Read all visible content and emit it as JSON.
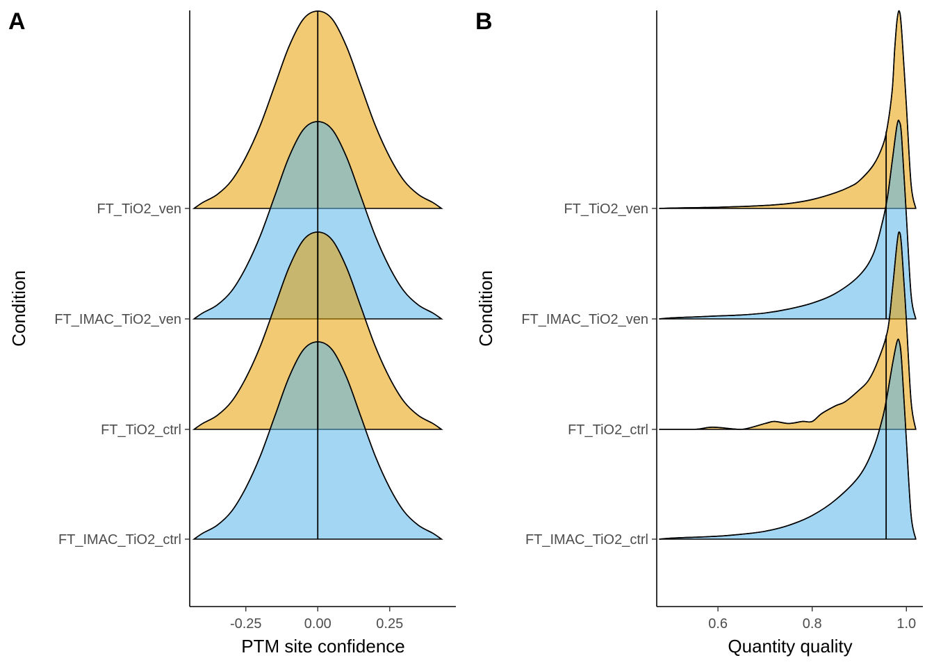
{
  "colors": {
    "yellow": "#E69F00",
    "blue": "#56B4E9"
  },
  "chart_data": [
    {
      "type": "ridgeline",
      "panel_tag": "A",
      "xlabel": "PTM site confidence",
      "ylabel": "Condition",
      "xlim": [
        -0.445,
        0.48
      ],
      "xticks": [
        -0.25,
        0.0,
        0.25
      ],
      "xtick_labels": [
        "-0.25",
        "0.00",
        "0.25"
      ],
      "categories": [
        "FT_IMAC_TiO2_ctrl",
        "FT_TiO2_ctrl",
        "FT_IMAC_TiO2_ven",
        "FT_TiO2_ven"
      ],
      "series": [
        {
          "category": "FT_IMAC_TiO2_ctrl",
          "color": "#56B4E9",
          "median": 0.0,
          "x": [
            -0.43,
            -0.4,
            -0.35,
            -0.3,
            -0.25,
            -0.2,
            -0.15,
            -0.1,
            -0.05,
            0.0,
            0.05,
            0.1,
            0.15,
            0.2,
            0.25,
            0.3,
            0.35,
            0.4,
            0.43
          ],
          "density": [
            0.0,
            0.03,
            0.07,
            0.14,
            0.26,
            0.42,
            0.62,
            0.82,
            0.96,
            1.0,
            0.96,
            0.82,
            0.62,
            0.42,
            0.26,
            0.14,
            0.07,
            0.03,
            0.0
          ]
        },
        {
          "category": "FT_TiO2_ctrl",
          "color": "#E69F00",
          "median": 0.0,
          "x": [
            -0.43,
            -0.4,
            -0.35,
            -0.3,
            -0.25,
            -0.2,
            -0.15,
            -0.1,
            -0.05,
            0.0,
            0.05,
            0.1,
            0.15,
            0.2,
            0.25,
            0.3,
            0.35,
            0.4,
            0.43
          ],
          "density": [
            0.0,
            0.03,
            0.07,
            0.14,
            0.26,
            0.42,
            0.62,
            0.82,
            0.96,
            1.0,
            0.96,
            0.82,
            0.62,
            0.42,
            0.26,
            0.14,
            0.07,
            0.03,
            0.0
          ]
        },
        {
          "category": "FT_IMAC_TiO2_ven",
          "color": "#56B4E9",
          "median": 0.0,
          "x": [
            -0.43,
            -0.4,
            -0.35,
            -0.3,
            -0.25,
            -0.2,
            -0.15,
            -0.1,
            -0.05,
            0.0,
            0.05,
            0.1,
            0.15,
            0.2,
            0.25,
            0.3,
            0.35,
            0.4,
            0.43
          ],
          "density": [
            0.0,
            0.03,
            0.07,
            0.14,
            0.26,
            0.42,
            0.62,
            0.82,
            0.96,
            1.0,
            0.96,
            0.82,
            0.62,
            0.42,
            0.26,
            0.14,
            0.07,
            0.03,
            0.0
          ]
        },
        {
          "category": "FT_TiO2_ven",
          "color": "#E69F00",
          "median": 0.0,
          "x": [
            -0.43,
            -0.4,
            -0.35,
            -0.3,
            -0.25,
            -0.2,
            -0.15,
            -0.1,
            -0.05,
            0.0,
            0.05,
            0.1,
            0.15,
            0.2,
            0.25,
            0.3,
            0.35,
            0.4,
            0.43
          ],
          "density": [
            0.0,
            0.03,
            0.07,
            0.14,
            0.26,
            0.42,
            0.62,
            0.82,
            0.96,
            1.0,
            0.96,
            0.82,
            0.62,
            0.42,
            0.26,
            0.14,
            0.07,
            0.03,
            0.0
          ]
        }
      ]
    },
    {
      "type": "ridgeline",
      "panel_tag": "B",
      "xlabel": "Quantity quality",
      "ylabel": "Condition",
      "xlim": [
        0.47,
        1.035
      ],
      "xticks": [
        0.6,
        0.8,
        1.0
      ],
      "xtick_labels": [
        "0.6",
        "0.8",
        "1.0"
      ],
      "categories": [
        "FT_IMAC_TiO2_ctrl",
        "FT_TiO2_ctrl",
        "FT_IMAC_TiO2_ven",
        "FT_TiO2_ven"
      ],
      "series": [
        {
          "category": "FT_IMAC_TiO2_ctrl",
          "color": "#56B4E9",
          "median": 0.957,
          "x": [
            0.475,
            0.5,
            0.55,
            0.6,
            0.65,
            0.7,
            0.75,
            0.8,
            0.85,
            0.9,
            0.93,
            0.95,
            0.96,
            0.97,
            0.98,
            0.985,
            0.99,
            1.0,
            1.01,
            1.02
          ],
          "density": [
            0.0,
            0.005,
            0.01,
            0.015,
            0.025,
            0.04,
            0.07,
            0.12,
            0.2,
            0.32,
            0.46,
            0.62,
            0.74,
            0.88,
            1.0,
            1.0,
            0.9,
            0.5,
            0.12,
            0.0
          ]
        },
        {
          "category": "FT_TiO2_ctrl",
          "color": "#E69F00",
          "median": 0.957,
          "x": [
            0.475,
            0.55,
            0.58,
            0.6,
            0.65,
            0.7,
            0.72,
            0.75,
            0.78,
            0.8,
            0.82,
            0.85,
            0.87,
            0.9,
            0.92,
            0.94,
            0.96,
            0.97,
            0.98,
            0.985,
            0.99,
            1.0,
            1.01,
            1.02
          ],
          "density": [
            0.0,
            0.0,
            0.01,
            0.01,
            0.0,
            0.03,
            0.04,
            0.03,
            0.04,
            0.04,
            0.08,
            0.12,
            0.14,
            0.2,
            0.25,
            0.35,
            0.5,
            0.7,
            0.94,
            1.0,
            0.92,
            0.55,
            0.14,
            0.0
          ]
        },
        {
          "category": "FT_IMAC_TiO2_ven",
          "color": "#56B4E9",
          "median": 0.957,
          "x": [
            0.475,
            0.5,
            0.55,
            0.6,
            0.65,
            0.7,
            0.75,
            0.8,
            0.85,
            0.9,
            0.93,
            0.95,
            0.96,
            0.97,
            0.98,
            0.985,
            0.99,
            1.0,
            1.01,
            1.02
          ],
          "density": [
            0.0,
            0.005,
            0.01,
            0.015,
            0.02,
            0.03,
            0.05,
            0.08,
            0.13,
            0.22,
            0.33,
            0.5,
            0.62,
            0.8,
            0.98,
            1.0,
            0.92,
            0.52,
            0.12,
            0.0
          ]
        },
        {
          "category": "FT_TiO2_ven",
          "color": "#E69F00",
          "median": 0.957,
          "x": [
            0.475,
            0.5,
            0.55,
            0.6,
            0.65,
            0.7,
            0.75,
            0.8,
            0.85,
            0.88,
            0.9,
            0.93,
            0.95,
            0.96,
            0.97,
            0.975,
            0.98,
            0.985,
            0.99,
            1.0,
            1.01,
            1.02
          ],
          "density": [
            0.0,
            0.002,
            0.004,
            0.006,
            0.01,
            0.015,
            0.025,
            0.045,
            0.08,
            0.11,
            0.14,
            0.22,
            0.32,
            0.42,
            0.6,
            0.8,
            0.95,
            1.0,
            0.9,
            0.52,
            0.12,
            0.0
          ]
        }
      ]
    }
  ]
}
